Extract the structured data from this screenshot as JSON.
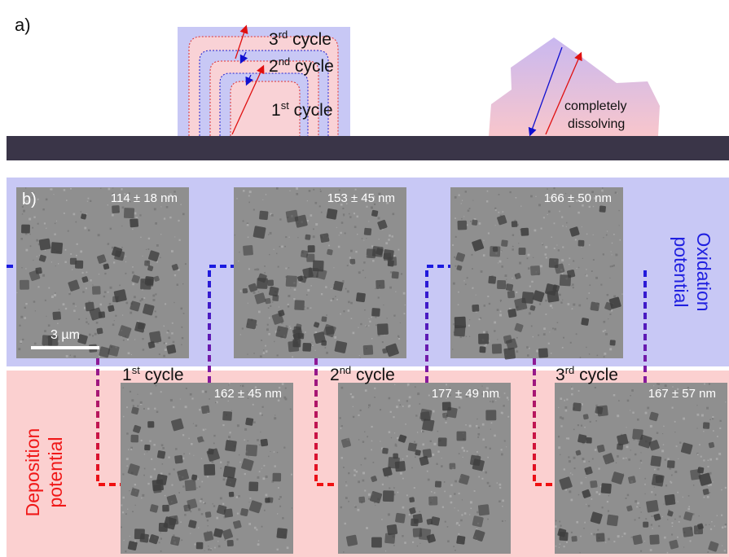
{
  "panel_a": {
    "label": "a)",
    "cycles": [
      {
        "number": "3",
        "suffix": "rd",
        "word": " cycle"
      },
      {
        "number": "2",
        "suffix": "nd",
        "word": " cycle"
      },
      {
        "number": "1",
        "suffix": "st",
        "word": " cycle"
      }
    ],
    "dissolving": [
      "completely",
      "dissolving"
    ]
  },
  "panel_b": {
    "label": "b)",
    "scale_bar": "3 µm",
    "oxidation": [
      "Oxidation",
      "potential"
    ],
    "deposition": [
      "Deposition",
      "potential"
    ],
    "oxidation_images": [
      "114 ± 18 nm",
      "153 ± 45 nm",
      "166 ± 50 nm"
    ],
    "deposition_images": [
      "162 ± 45 nm",
      "177 ± 49 nm",
      "167 ± 57 nm"
    ],
    "cycles": [
      {
        "number": "1",
        "suffix": "st",
        "word": " cycle"
      },
      {
        "number": "2",
        "suffix": "nd",
        "word": " cycle"
      },
      {
        "number": "3",
        "suffix": "rd",
        "word": " cycle"
      }
    ]
  }
}
